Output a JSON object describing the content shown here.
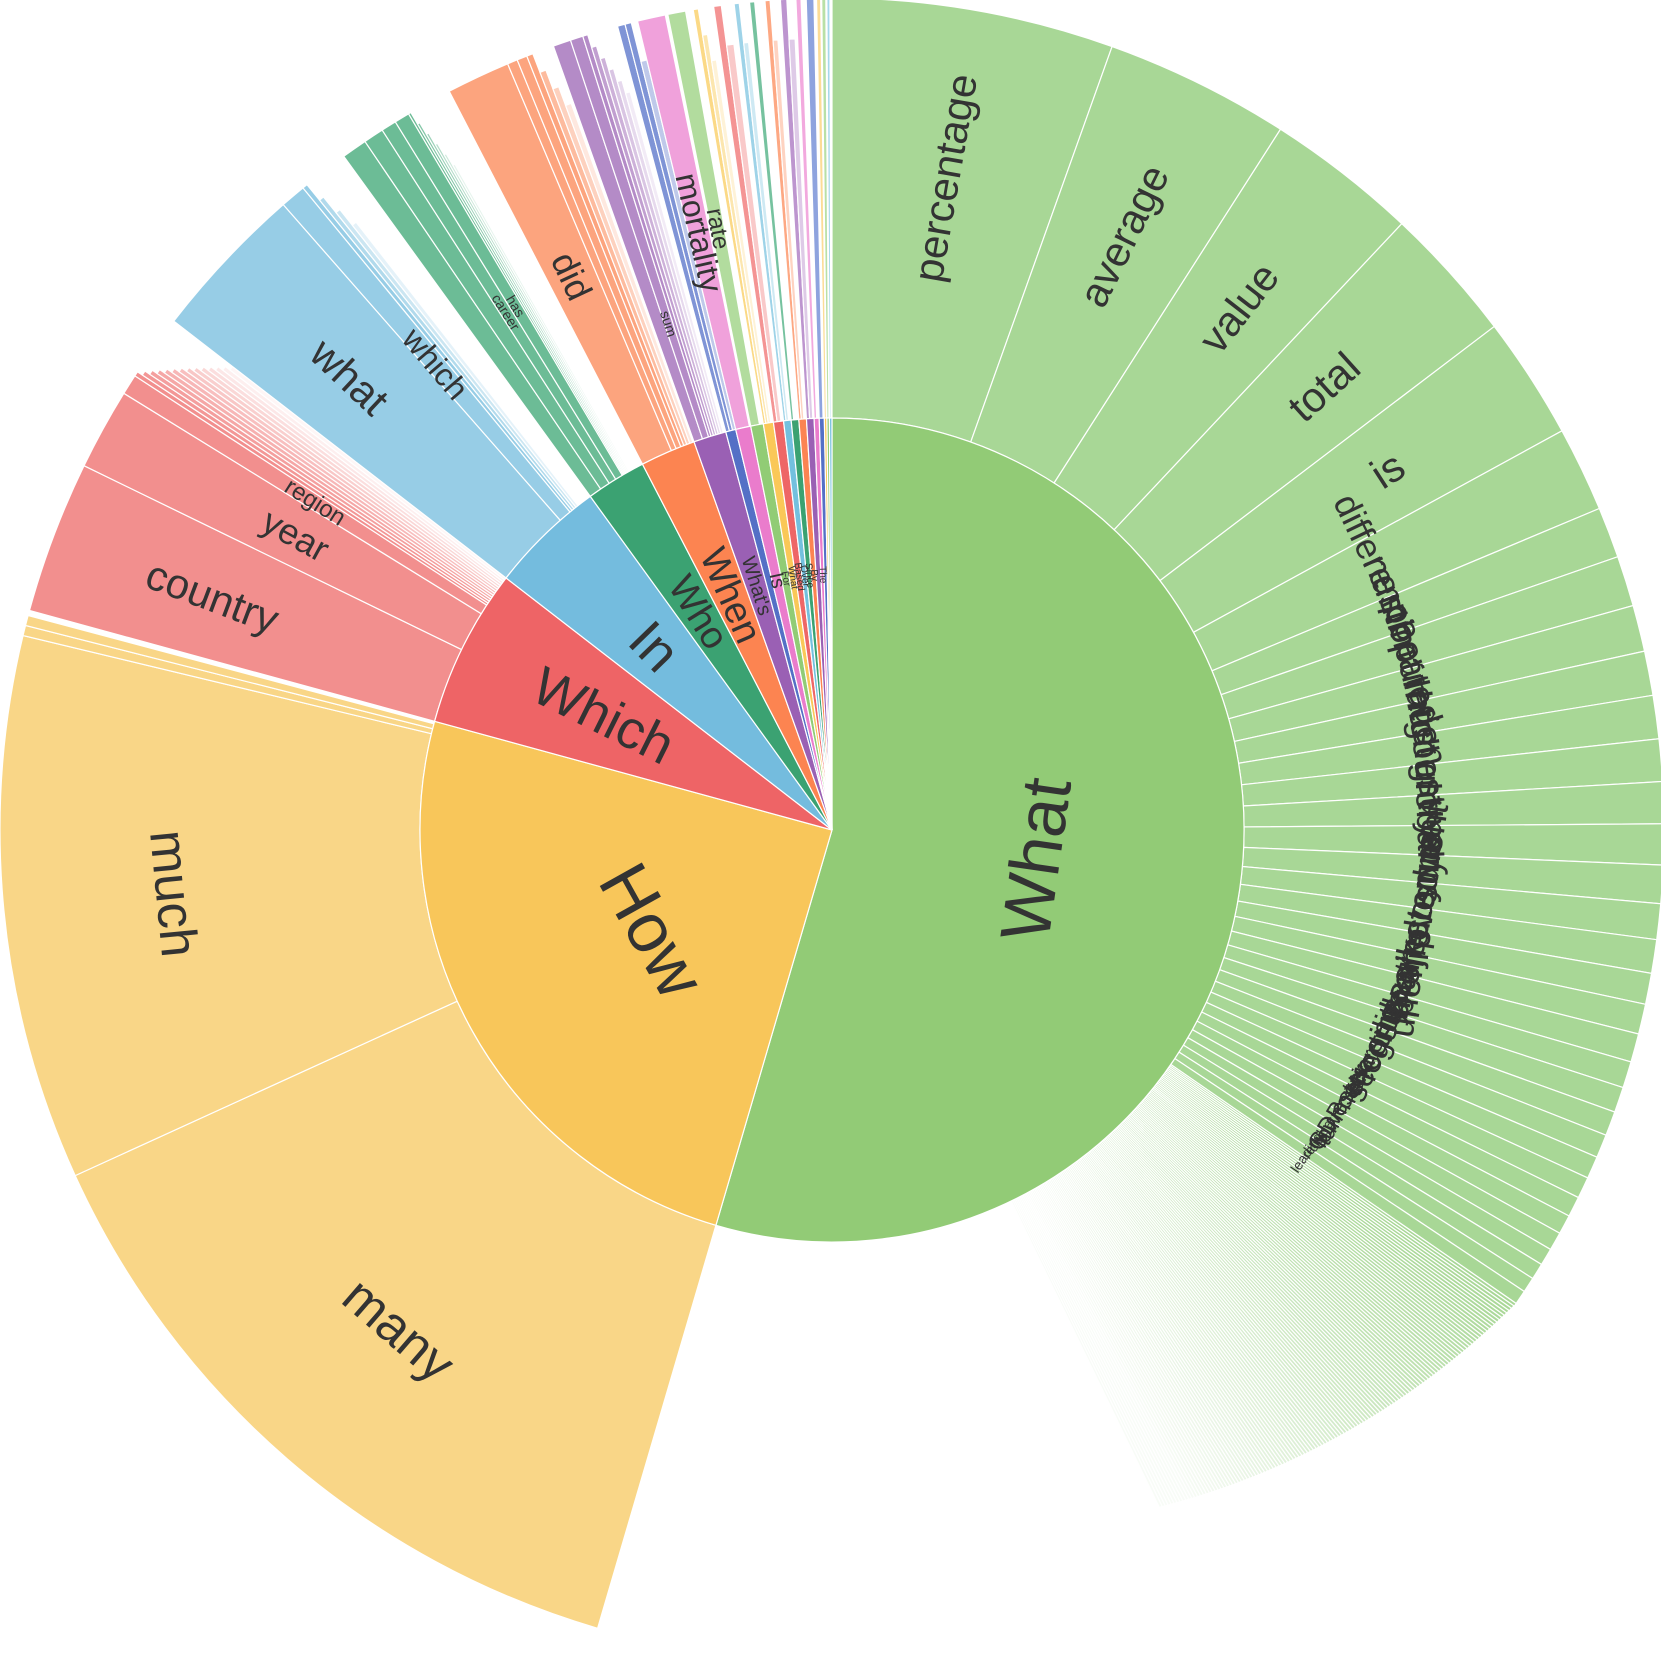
{
  "chart_data": {
    "type": "sunburst",
    "title": "",
    "start_angle_deg": 0,
    "direction": "clockwise",
    "root": [
      {
        "label": "What",
        "value": 0.552,
        "color": "#92cb76",
        "child_color": "#a8d796",
        "children": [
          {
            "label": "percentage",
            "value": 0.0553
          },
          {
            "label": "average",
            "value": 0.0364
          },
          {
            "label": "value",
            "value": 0.0298
          },
          {
            "label": "total",
            "value": 0.0268
          },
          {
            "label": "is",
            "value": 0.0241
          },
          {
            "label": "difference",
            "value": 0.0167
          },
          {
            "label": "number",
            "value": 0.01
          },
          {
            "label": "estimated",
            "value": 0.0099
          },
          {
            "label": "population",
            "value": 0.0091
          },
          {
            "label": "most",
            "value": 0.0087
          },
          {
            "label": "highest",
            "value": 0.0085
          },
          {
            "label": "country",
            "value": 0.0083
          },
          {
            "label": "global",
            "value": 0.0082
          },
          {
            "label": "year",
            "value": 0.008
          },
          {
            "label": "sum",
            "value": 0.0075
          },
          {
            "label": "revenue",
            "value": 0.007
          },
          {
            "label": "unemployment",
            "value": 0.0066
          },
          {
            "label": "projected",
            "value": 0.0061
          },
          {
            "label": "market",
            "value": 0.0059
          },
          {
            "label": "youth",
            "value": 0.0056
          },
          {
            "label": "sales",
            "value": 0.0052
          },
          {
            "label": "gross",
            "value": 0.005
          },
          {
            "label": "fertility",
            "value": 0.0048
          },
          {
            "label": "second",
            "value": 0.0046
          },
          {
            "label": "share",
            "value": 0.0044
          },
          {
            "label": "ratio",
            "value": 0.0042
          },
          {
            "label": "net",
            "value": 0.004
          },
          {
            "label": "turnover",
            "value": 0.0038
          },
          {
            "label": "lowest",
            "value": 0.0036
          },
          {
            "label": "GDP",
            "value": 0.0034
          },
          {
            "label": "crude",
            "value": 0.0032
          },
          {
            "label": "retail",
            "value": 0.003
          },
          {
            "label": "leading",
            "value": 0.0028
          }
        ],
        "tail": {
          "count": 130,
          "value": 0.083
        }
      },
      {
        "label": "How",
        "value": 0.25,
        "color": "#f8c65a",
        "child_color": "#f9d687",
        "children": [
          {
            "label": "many",
            "value": 0.138
          },
          {
            "label": "much",
            "value": 0.107
          },
          {
            "label": "",
            "value": 0.002
          },
          {
            "label": "",
            "value": 0.002
          }
        ]
      },
      {
        "label": "Which",
        "value": 0.063,
        "color": "#ee6466",
        "child_color": "#f28f8e",
        "children": [
          {
            "label": "country",
            "value": 0.03
          },
          {
            "label": "year",
            "value": 0.016
          },
          {
            "label": "region",
            "value": 0.004
          }
        ],
        "tail": {
          "count": 14,
          "value": 0.013
        }
      },
      {
        "label": "In",
        "value": 0.046,
        "color": "#74bcde",
        "child_color": "#97cde6",
        "children": [
          {
            "label": "what",
            "value": 0.031
          },
          {
            "label": "which",
            "value": 0.005
          }
        ],
        "tail": {
          "count": 4,
          "value": 0.004
        }
      },
      {
        "label": "Who",
        "value": 0.024,
        "color": "#3ba272",
        "child_color": "#6cbc96",
        "children": [
          {
            "label": "",
            "value": 0.005
          },
          {
            "label": "",
            "value": 0.004
          },
          {
            "label": "career",
            "value": 0.003
          },
          {
            "label": "has",
            "value": 0.003
          }
        ],
        "tail": {
          "count": 6,
          "value": 0.003
        }
      },
      {
        "label": "When",
        "value": 0.022,
        "color": "#fc8451",
        "child_color": "#fca47e",
        "children": [
          {
            "label": "did",
            "value": 0.0125
          },
          {
            "label": "",
            "value": 0.002
          },
          {
            "label": "",
            "value": 0.002
          }
        ],
        "tail": {
          "count": 4,
          "value": 0.005
        }
      },
      {
        "label": "What's",
        "value": 0.013,
        "color": "#9a60b4",
        "child_color": "#b48bc7",
        "children": [
          {
            "label": "",
            "value": 0.0035
          },
          {
            "label": "sum",
            "value": 0.0025
          }
        ],
        "tail": {
          "count": 6,
          "value": 0.006
        }
      },
      {
        "label": "",
        "value": 0.004,
        "color": "#5470c6",
        "child_color": "#7f94d6",
        "children": [
          {
            "label": "",
            "value": 0.0015
          }
        ],
        "tail": {
          "count": 2,
          "value": 0.0025
        }
      },
      {
        "label": "Is",
        "value": 0.006,
        "color": "#ea7ccc",
        "child_color": "#f0a1db",
        "children": [
          {
            "label": "mortality",
            "value": 0.0055
          }
        ]
      },
      {
        "label": "For",
        "value": 0.005,
        "color": "#91cc75",
        "child_color": "#b2dc9e",
        "children": [
          {
            "label": "rate",
            "value": 0.0035
          }
        ]
      },
      {
        "label": "What",
        "value": 0.004,
        "color": "#fac858",
        "child_color": "#fbd986",
        "children": [],
        "tail": {
          "count": 3,
          "value": 0.003
        }
      },
      {
        "label": "Based",
        "value": 0.004,
        "color": "#ee6666",
        "child_color": "#f49494",
        "children": [],
        "tail": {
          "count": 2,
          "value": 0.003
        }
      },
      {
        "label": "Over",
        "value": 0.003,
        "color": "#73c0de",
        "child_color": "#9ed3e8",
        "children": [],
        "tail": {
          "count": 2,
          "value": 0.002
        }
      },
      {
        "label": "Since",
        "value": 0.003,
        "color": "#3ba272",
        "child_color": "#76c29f",
        "children": [],
        "tail": {
          "count": 1,
          "value": 0.001
        }
      },
      {
        "label": "By",
        "value": 0.003,
        "color": "#fc8452",
        "child_color": "#fda883",
        "children": [],
        "tail": {
          "count": 2,
          "value": 0.002
        }
      },
      {
        "label": "",
        "value": 0.003,
        "color": "#9a60b4",
        "child_color": "#bd95cf",
        "children": [],
        "tail": {
          "count": 2,
          "value": 0.0025
        }
      },
      {
        "label": "The",
        "value": 0.002,
        "color": "#ea7ccc",
        "child_color": "#f2a9de",
        "children": [],
        "tail": {
          "count": 1,
          "value": 0.001
        }
      },
      {
        "label": "",
        "value": 0.002,
        "color": "#5470c6",
        "child_color": "#8ea3de",
        "children": [],
        "tail": {
          "count": 1,
          "value": 0.0015
        }
      },
      {
        "label": "",
        "value": 0.001,
        "color": "#fac858",
        "child_color": "#fcdc96",
        "children": [],
        "tail": {
          "count": 1,
          "value": 0.0008
        }
      },
      {
        "label": "",
        "value": 0.001,
        "color": "#91cc75",
        "child_color": "#b9e0a6",
        "children": [],
        "tail": {
          "count": 1,
          "value": 0.0008
        }
      },
      {
        "label": "",
        "value": 0.001,
        "color": "#73c0de",
        "child_color": "#a6d8ec",
        "children": [],
        "tail": {
          "count": 1,
          "value": 0.0006
        }
      }
    ]
  }
}
